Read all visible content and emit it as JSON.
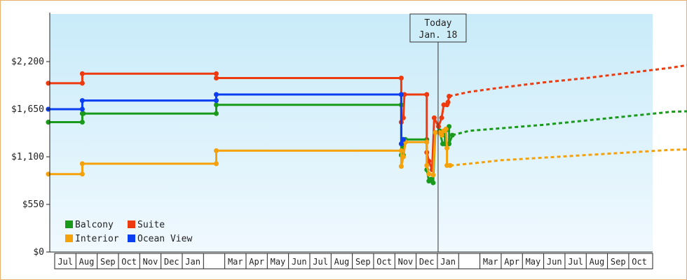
{
  "chart_data": {
    "type": "line",
    "title": "",
    "xlabel": "",
    "ylabel": "",
    "ylim": [
      0,
      2750
    ],
    "y_ticks": [
      {
        "value": 0,
        "label": "$0"
      },
      {
        "value": 550,
        "label": "$550"
      },
      {
        "value": 1100,
        "label": "$1,100"
      },
      {
        "value": 1650,
        "label": "$1,650"
      },
      {
        "value": 2200,
        "label": "$2,200"
      }
    ],
    "x_months": [
      "Jul",
      "Aug",
      "Sep",
      "Oct",
      "Nov",
      "Dec",
      "Jan",
      "",
      "Mar",
      "Apr",
      "May",
      "Jun",
      "Jul",
      "Aug",
      "Sep",
      "Oct",
      "Nov",
      "Dec",
      "Jan",
      "",
      "Mar",
      "Apr",
      "May",
      "Jun",
      "Jul",
      "Aug",
      "Sep",
      "Oct"
    ],
    "x_unit": "months",
    "today_x": 18.0,
    "today_label_line1": "Today",
    "today_label_line2": "Jan. 18",
    "grid": false,
    "legend_position": "bottom-left",
    "series": [
      {
        "name": "Balcony",
        "color": "#1a9a1a",
        "points": [
          [
            -0.3,
            1500
          ],
          [
            1.3,
            1500
          ],
          [
            1.3,
            1600
          ],
          [
            1.35,
            1600
          ],
          [
            7.6,
            1600
          ],
          [
            7.6,
            1700
          ],
          [
            16.3,
            1700
          ],
          [
            16.3,
            1120
          ],
          [
            16.4,
            1120
          ],
          [
            16.4,
            1300
          ],
          [
            16.5,
            1300
          ],
          [
            17.5,
            1300
          ],
          [
            17.5,
            950
          ],
          [
            17.6,
            820
          ],
          [
            17.7,
            840
          ],
          [
            17.8,
            800
          ],
          [
            17.9,
            1380
          ],
          [
            18.1,
            1380
          ],
          [
            18.1,
            1400
          ],
          [
            18.25,
            1250
          ],
          [
            18.35,
            1250
          ],
          [
            18.35,
            1350
          ],
          [
            18.55,
            1450
          ],
          [
            18.55,
            1250
          ],
          [
            18.7,
            1350
          ]
        ],
        "projection": [
          [
            18.7,
            1350
          ],
          [
            19.5,
            1400
          ],
          [
            21,
            1430
          ],
          [
            23,
            1470
          ],
          [
            25,
            1520
          ],
          [
            27,
            1570
          ],
          [
            29,
            1620
          ],
          [
            30.3,
            1630
          ]
        ]
      },
      {
        "name": "Suite",
        "color": "#ee3a0f",
        "points": [
          [
            -0.3,
            1950
          ],
          [
            1.3,
            1950
          ],
          [
            1.3,
            2060
          ],
          [
            7.6,
            2060
          ],
          [
            7.6,
            2010
          ],
          [
            16.3,
            2010
          ],
          [
            16.3,
            1500
          ],
          [
            16.4,
            1550
          ],
          [
            16.45,
            1820
          ],
          [
            17.5,
            1820
          ],
          [
            17.5,
            1150
          ],
          [
            17.6,
            1050
          ],
          [
            17.75,
            950
          ],
          [
            17.85,
            1550
          ],
          [
            18.05,
            1450
          ],
          [
            18.2,
            1550
          ],
          [
            18.3,
            1700
          ],
          [
            18.45,
            1700
          ],
          [
            18.5,
            1730
          ],
          [
            18.55,
            1800
          ]
        ],
        "projection": [
          [
            18.55,
            1800
          ],
          [
            19.5,
            1850
          ],
          [
            21,
            1900
          ],
          [
            23,
            1960
          ],
          [
            25,
            2010
          ],
          [
            27,
            2070
          ],
          [
            29,
            2130
          ],
          [
            30.3,
            2180
          ]
        ]
      },
      {
        "name": "Interior",
        "color": "#f5a20a",
        "points": [
          [
            -0.3,
            900
          ],
          [
            1.3,
            900
          ],
          [
            1.3,
            1020
          ],
          [
            7.6,
            1020
          ],
          [
            7.6,
            1170
          ],
          [
            16.3,
            1170
          ],
          [
            16.3,
            990
          ],
          [
            16.4,
            1100
          ],
          [
            16.5,
            1270
          ],
          [
            17.5,
            1270
          ],
          [
            17.5,
            1000
          ],
          [
            17.6,
            900
          ],
          [
            17.8,
            890
          ],
          [
            17.9,
            1380
          ],
          [
            18.1,
            1380
          ],
          [
            18.2,
            1350
          ],
          [
            18.3,
            1400
          ],
          [
            18.4,
            1420
          ],
          [
            18.45,
            1200
          ],
          [
            18.45,
            1000
          ],
          [
            18.6,
            1000
          ]
        ],
        "projection": [
          [
            18.6,
            1000
          ],
          [
            19.5,
            1020
          ],
          [
            21,
            1060
          ],
          [
            23,
            1090
          ],
          [
            25,
            1120
          ],
          [
            27,
            1150
          ],
          [
            29,
            1180
          ],
          [
            30.3,
            1190
          ]
        ]
      },
      {
        "name": "Ocean View",
        "color": "#0a3ef0",
        "points": [
          [
            -0.3,
            1650
          ],
          [
            1.3,
            1650
          ],
          [
            1.3,
            1750
          ],
          [
            7.6,
            1750
          ],
          [
            7.6,
            1820
          ],
          [
            16.3,
            1820
          ],
          [
            16.3,
            1250
          ],
          [
            16.4,
            1300
          ]
        ],
        "projection": []
      }
    ]
  }
}
